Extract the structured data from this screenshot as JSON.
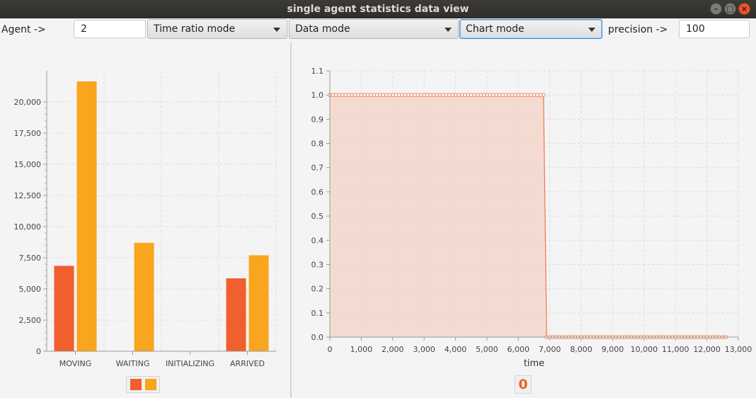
{
  "window": {
    "title": "single agent statistics data view"
  },
  "toolbar": {
    "agent_label": "Agent ->",
    "agent_value": "2",
    "time_mode": "Time ratio mode",
    "data_mode": "Data mode",
    "chart_mode": "Chart mode",
    "precision_label": "precision ->",
    "precision_value": "100"
  },
  "colors": {
    "series1": "#f05f2d",
    "series2": "#f9a51e",
    "area_fill": "#f3d6cb",
    "area_line": "#f0764b"
  },
  "bar_chart": {
    "chart_data": {
      "type": "bar",
      "categories": [
        "MOVING",
        "WAITING",
        "INITIALIZING",
        "ARRIVED"
      ],
      "series": [
        {
          "values": [
            6850,
            0,
            0,
            5850
          ]
        },
        {
          "values": [
            21650,
            8700,
            0,
            7700
          ]
        }
      ],
      "ylim": [
        0,
        22500
      ],
      "yticks": [
        "0",
        "2,500",
        "5,000",
        "7,500",
        "10,000",
        "12,500",
        "15,000",
        "17,500",
        "20,000"
      ],
      "grid": true,
      "legend": "bottom"
    }
  },
  "area_chart": {
    "chart_data": {
      "type": "area",
      "xlabel": "time",
      "xlim": [
        0,
        13000
      ],
      "ylim": [
        0,
        1.1
      ],
      "xticks": [
        "0",
        "1,000",
        "2,000",
        "3,000",
        "4,000",
        "5,000",
        "6,000",
        "7,000",
        "8,000",
        "9,000",
        "10,000",
        "11,000",
        "12,000",
        "13,000"
      ],
      "yticks": [
        "0.0",
        "0.1",
        "0.2",
        "0.3",
        "0.4",
        "0.5",
        "0.6",
        "0.7",
        "0.8",
        "0.9",
        "1.0",
        "1.1"
      ],
      "series": [
        {
          "name": "0",
          "x_start": 0,
          "x_end": 12600,
          "step": 100,
          "high_until": 6800,
          "high_value": 1.0,
          "low_value": 0.0
        }
      ],
      "grid": true,
      "legend": "bottom"
    }
  }
}
